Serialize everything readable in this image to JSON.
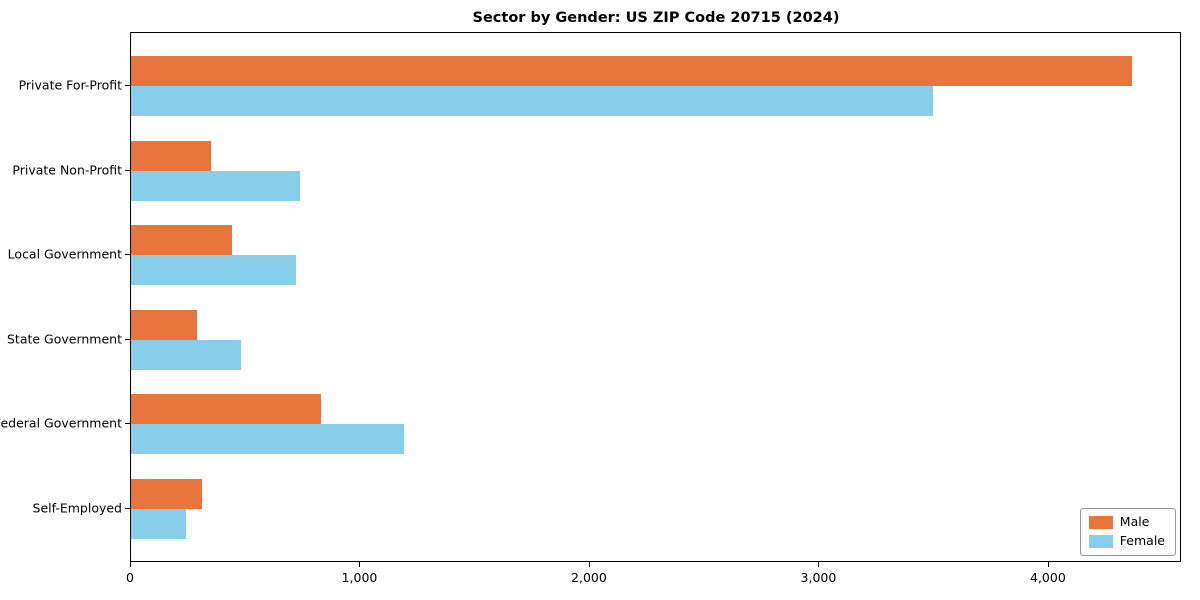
{
  "chart_data": {
    "type": "bar",
    "orientation": "horizontal",
    "title": "Sector by Gender: US ZIP Code 20715 (2024)",
    "categories": [
      "Private For-Profit",
      "Private Non-Profit",
      "Local Government",
      "State Government",
      "Federal Government",
      "Self-Employed"
    ],
    "series": [
      {
        "name": "Male",
        "color": "#e8763c",
        "values": [
          4370,
          350,
          440,
          290,
          830,
          310
        ]
      },
      {
        "name": "Female",
        "color": "#87ceeb",
        "values": [
          3500,
          740,
          720,
          480,
          1190,
          240
        ]
      }
    ],
    "xlabel": "",
    "ylabel": "",
    "xlim": [
      0,
      4580
    ],
    "xticks": {
      "values": [
        0,
        1000,
        2000,
        3000,
        4000
      ],
      "labels": [
        "0",
        "1,000",
        "2,000",
        "3,000",
        "4,000"
      ]
    },
    "grid": false,
    "legend": {
      "position": "lower right",
      "entries": [
        "Male",
        "Female"
      ]
    }
  }
}
